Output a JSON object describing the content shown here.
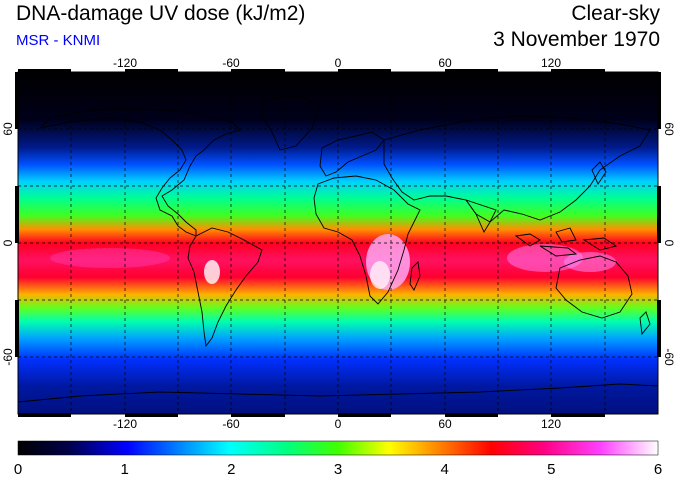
{
  "header": {
    "title": "DNA-damage UV dose (kJ/m2)",
    "subtitle": "MSR - KNMI",
    "sky": "Clear-sky",
    "date": "3 November 1970"
  },
  "map": {
    "projection": "equirectangular",
    "lon_ticks": [
      -120,
      -60,
      0,
      60,
      120
    ],
    "lat_ticks": [
      60,
      0,
      -60
    ],
    "gridlines": "dashed every 30 degrees"
  },
  "colorbar": {
    "min": 0,
    "max": 6,
    "tick_labels": [
      "0",
      "1",
      "2",
      "3",
      "4",
      "5",
      "6"
    ],
    "colors": [
      "#000000",
      "#00008b",
      "#0000ff",
      "#00bfff",
      "#00ffff",
      "#00ff7f",
      "#00ff00",
      "#ffff00",
      "#ffa500",
      "#ff0000",
      "#ff1493",
      "#ff00ff",
      "#ffffff"
    ]
  },
  "colors": {
    "subtitle": "#0000ff",
    "text": "#000000"
  }
}
